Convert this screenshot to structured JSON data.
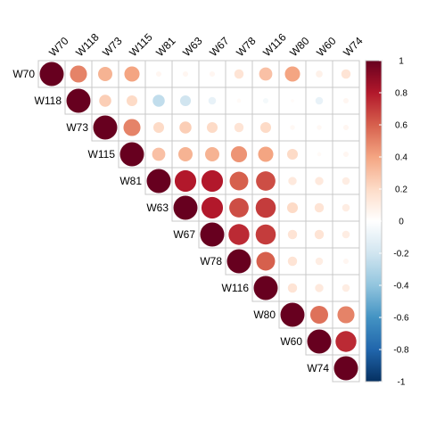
{
  "chart_data": {
    "type": "heatmap",
    "subtype": "correlation-matrix-upper-circles",
    "variables": [
      "W70",
      "W118",
      "W73",
      "W115",
      "W81",
      "W63",
      "W67",
      "W78",
      "W116",
      "W80",
      "W60",
      "W74"
    ],
    "matrix": [
      [
        1.0,
        0.5,
        0.35,
        0.4,
        0.05,
        0.05,
        0.05,
        0.15,
        0.3,
        0.4,
        0.08,
        0.15
      ],
      [
        null,
        1.0,
        0.25,
        0.2,
        -0.25,
        -0.2,
        -0.1,
        0.03,
        -0.05,
        0.02,
        -0.1,
        0.05
      ],
      [
        null,
        null,
        1.0,
        0.5,
        0.2,
        0.25,
        0.2,
        0.15,
        0.2,
        0.04,
        0.04,
        0.05
      ],
      [
        null,
        null,
        null,
        1.0,
        0.3,
        0.35,
        0.35,
        0.45,
        0.4,
        0.2,
        0.03,
        0.05
      ],
      [
        null,
        null,
        null,
        null,
        1.0,
        0.8,
        0.8,
        0.6,
        0.65,
        0.12,
        0.12,
        0.1
      ],
      [
        null,
        null,
        null,
        null,
        null,
        1.0,
        0.8,
        0.65,
        0.7,
        0.2,
        0.15,
        0.1
      ],
      [
        null,
        null,
        null,
        null,
        null,
        null,
        1.0,
        0.75,
        0.7,
        0.15,
        0.15,
        0.1
      ],
      [
        null,
        null,
        null,
        null,
        null,
        null,
        null,
        1.0,
        0.6,
        0.15,
        0.1,
        0.05
      ],
      [
        null,
        null,
        null,
        null,
        null,
        null,
        null,
        null,
        1.0,
        0.15,
        0.12,
        0.1
      ],
      [
        null,
        null,
        null,
        null,
        null,
        null,
        null,
        null,
        null,
        1.0,
        0.55,
        0.5
      ],
      [
        null,
        null,
        null,
        null,
        null,
        null,
        null,
        null,
        null,
        null,
        1.0,
        0.75
      ],
      [
        null,
        null,
        null,
        null,
        null,
        null,
        null,
        null,
        null,
        null,
        null,
        1.0
      ]
    ],
    "colorbar": {
      "range": [
        -1,
        1
      ],
      "ticks": [
        "1",
        "0.8",
        "0.6",
        "0.4",
        "0.2",
        "0",
        "-0.2",
        "-0.4",
        "-0.6",
        "-0.8",
        "-1"
      ],
      "colors": [
        "#67001F",
        "#B2182B",
        "#D6604D",
        "#F4A582",
        "#FDDBC7",
        "#FFFFFF",
        "#D1E5F0",
        "#92C5DE",
        "#4393C3",
        "#2166AC",
        "#053061"
      ]
    },
    "grid": true,
    "legend_position": "right"
  }
}
